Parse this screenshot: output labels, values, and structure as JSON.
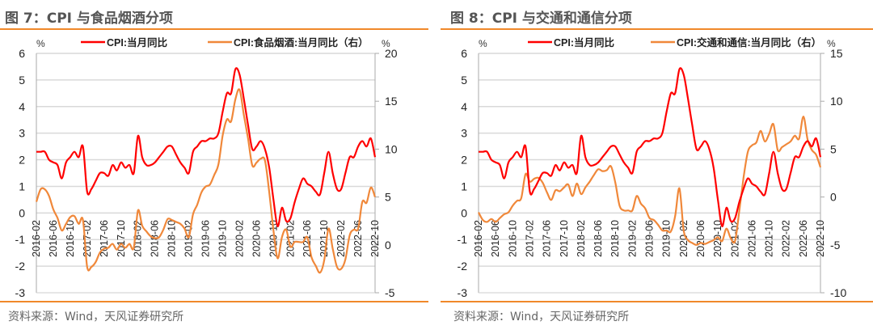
{
  "chart_data": [
    {
      "type": "line",
      "title": "图 7：CPI 与食品烟酒分项",
      "source": "资料来源：Wind，天风证券研究所",
      "left_unit": "%",
      "right_unit": "%",
      "ylim": [
        -3,
        6
      ],
      "yticks": [
        6,
        5,
        4,
        3,
        2,
        1,
        0,
        -1,
        -2,
        -3
      ],
      "y2lim": [
        -5,
        20
      ],
      "y2ticks": [
        20,
        15,
        10,
        5,
        0,
        -5
      ],
      "xticks": [
        "2016-02",
        "2016-06",
        "2016-10",
        "2017-02",
        "2017-06",
        "2017-10",
        "2018-02",
        "2018-06",
        "2018-10",
        "2019-02",
        "2019-06",
        "2019-10",
        "2020-02",
        "2020-06",
        "2020-10",
        "2021-02",
        "2021-06",
        "2021-10",
        "2022-02",
        "2022-06",
        "2022-10"
      ],
      "series": [
        {
          "name": "CPI:当月同比",
          "axis": "left",
          "color": "#ff0000",
          "values": [
            2.3,
            2.3,
            2.3,
            2.0,
            1.9,
            1.8,
            1.3,
            1.9,
            2.1,
            2.3,
            2.1,
            2.5,
            0.8,
            0.9,
            1.2,
            1.5,
            1.5,
            1.4,
            1.8,
            1.6,
            1.9,
            1.7,
            1.8,
            1.5,
            2.9,
            2.1,
            1.8,
            1.8,
            1.9,
            2.1,
            2.3,
            2.5,
            2.5,
            2.2,
            1.9,
            1.7,
            1.5,
            2.3,
            2.5,
            2.7,
            2.7,
            2.8,
            2.8,
            3.0,
            3.8,
            4.5,
            4.5,
            5.4,
            5.2,
            4.3,
            3.3,
            2.4,
            2.5,
            2.7,
            2.4,
            1.7,
            0.5,
            -0.5,
            0.2,
            -0.3,
            -0.2,
            0.4,
            0.9,
            1.3,
            1.1,
            1.0,
            0.8,
            0.7,
            1.5,
            2.3,
            1.5,
            0.9,
            0.9,
            1.5,
            2.1,
            2.1,
            2.5,
            2.7,
            2.5,
            2.8,
            2.1
          ]
        },
        {
          "name": "CPI:食品烟酒:当月同比（右）",
          "axis": "right",
          "color": "#f0883a",
          "values": [
            4.5,
            5.8,
            5.8,
            5.1,
            3.7,
            2.8,
            1.5,
            2.2,
            2.9,
            3.0,
            2.2,
            2.6,
            -2.3,
            -2.3,
            -1.8,
            -0.8,
            -0.4,
            -0.3,
            0.1,
            -0.5,
            0.1,
            -0.3,
            0.1,
            -0.3,
            3.6,
            2.0,
            1.4,
            0.9,
            0.7,
            0.8,
            1.6,
            2.7,
            2.6,
            2.4,
            2.2,
            1.7,
            0.8,
            3.2,
            4.2,
            5.5,
            6.1,
            6.3,
            7.3,
            8.4,
            11.4,
            13.1,
            12.9,
            15.2,
            16.2,
            13.6,
            11.1,
            8.3,
            8.6,
            9.0,
            8.8,
            5.5,
            1.5,
            -1.4,
            0.8,
            1.6,
            -0.2,
            0.3,
            0.3,
            0.3,
            0.8,
            -1.3,
            -2.2,
            -2.9,
            -1.6,
            1.7,
            -0.4,
            -2.3,
            -2.5,
            -1.5,
            1.0,
            1.6,
            1.7,
            4.5,
            4.4,
            6.0,
            5.0
          ]
        }
      ]
    },
    {
      "type": "line",
      "title": "图 8：CPI 与交通和通信分项",
      "source": "资料来源：Wind，天风证券研究所",
      "left_unit": "%",
      "right_unit": "%",
      "ylim": [
        -3,
        6
      ],
      "yticks": [
        6,
        5,
        4,
        3,
        2,
        1,
        0,
        -1,
        -2,
        -3
      ],
      "y2lim": [
        -10,
        15
      ],
      "y2ticks": [
        15,
        10,
        5,
        0,
        -5,
        -10
      ],
      "xticks": [
        "2016-02",
        "2016-06",
        "2016-10",
        "2017-02",
        "2017-06",
        "2017-10",
        "2018-02",
        "2018-06",
        "2018-10",
        "2019-02",
        "2019-06",
        "2019-10",
        "2020-02",
        "2020-06",
        "2020-10",
        "2021-02",
        "2021-06",
        "2021-10",
        "2022-02",
        "2022-06",
        "2022-10"
      ],
      "series": [
        {
          "name": "CPI:当月同比",
          "axis": "left",
          "color": "#ff0000",
          "values": [
            2.3,
            2.3,
            2.3,
            2.0,
            1.9,
            1.8,
            1.3,
            1.9,
            2.1,
            2.3,
            2.1,
            2.5,
            0.8,
            0.9,
            1.2,
            1.5,
            1.5,
            1.4,
            1.8,
            1.6,
            1.9,
            1.7,
            1.8,
            1.5,
            2.9,
            2.1,
            1.8,
            1.8,
            1.9,
            2.1,
            2.3,
            2.5,
            2.5,
            2.2,
            1.9,
            1.7,
            1.5,
            2.3,
            2.5,
            2.7,
            2.7,
            2.8,
            2.8,
            3.0,
            3.8,
            4.5,
            4.5,
            5.4,
            5.2,
            4.3,
            3.3,
            2.4,
            2.5,
            2.7,
            2.4,
            1.7,
            0.5,
            -0.5,
            0.2,
            -0.3,
            -0.2,
            0.4,
            0.9,
            1.3,
            1.1,
            1.0,
            0.8,
            0.7,
            1.5,
            2.3,
            1.5,
            0.9,
            0.9,
            1.5,
            2.1,
            2.1,
            2.5,
            2.7,
            2.5,
            2.8,
            2.1
          ]
        },
        {
          "name": "CPI:交通和通信:当月同比（右）",
          "axis": "right",
          "color": "#f0883a",
          "values": [
            -1.6,
            -2.4,
            -2.6,
            -2.3,
            -2.6,
            -2.2,
            -1.8,
            -1.6,
            -0.9,
            -0.4,
            -0.1,
            2.4,
            1.6,
            1.9,
            2.0,
            1.5,
            0.5,
            -0.3,
            0.7,
            0.6,
            1.0,
            1.3,
            0.1,
            1.4,
            0.3,
            1.0,
            1.6,
            2.3,
            2.9,
            2.7,
            2.8,
            3.2,
            1.5,
            -0.9,
            -1.4,
            -1.4,
            -1.4,
            0.1,
            -0.7,
            -1.2,
            -2.2,
            -2.4,
            -2.9,
            -3.5,
            -3.5,
            -3.6,
            -2.0,
            0.9,
            -3.5,
            -4.5,
            -4.8,
            -5.0,
            -4.8,
            -4.9,
            -4.7,
            -4.5,
            -4.2,
            -4.6,
            -3.3,
            -4.3,
            -4.6,
            -1.5,
            2.0,
            4.7,
            5.4,
            5.7,
            6.9,
            5.8,
            6.6,
            7.6,
            4.9,
            5.2,
            5.5,
            5.8,
            6.4,
            6.1,
            8.4,
            6.0,
            4.9,
            4.4,
            3.1
          ]
        }
      ]
    }
  ]
}
